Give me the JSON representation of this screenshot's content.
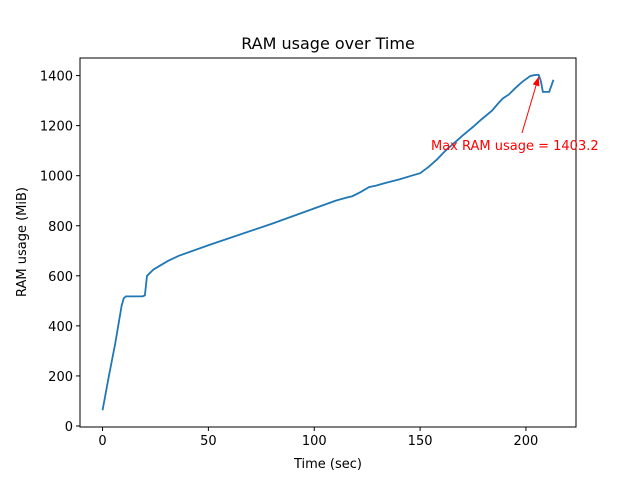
{
  "chart_data": {
    "type": "line",
    "title": "RAM usage over Time",
    "x_label": "Time (sec)",
    "y_label": "RAM usage (MiB)",
    "x": [
      0,
      3,
      6,
      9,
      10,
      11,
      19,
      20,
      21,
      24,
      27,
      31,
      36,
      50,
      80,
      110,
      115,
      118,
      122,
      126,
      129,
      134,
      140,
      146,
      150,
      154,
      158,
      162,
      166,
      170,
      175,
      179,
      184,
      187,
      189,
      192,
      195,
      198,
      202,
      204,
      206,
      207,
      208,
      211,
      213
    ],
    "values": [
      63,
      200,
      330,
      480,
      510,
      518,
      518,
      522,
      600,
      625,
      640,
      660,
      680,
      722,
      808,
      900,
      912,
      918,
      935,
      955,
      960,
      972,
      985,
      1000,
      1010,
      1035,
      1065,
      1100,
      1130,
      1160,
      1195,
      1225,
      1260,
      1290,
      1308,
      1325,
      1350,
      1373,
      1398,
      1402,
      1403.2,
      1380,
      1335,
      1335,
      1383
    ],
    "color": "#1f77b4",
    "annotation": "Max RAM usage = 1403.2",
    "annotation_color": "#ff0000",
    "xlim": [
      -10.65,
      223.65
    ],
    "xticks": [
      0,
      50,
      100,
      150,
      200
    ],
    "ylim": [
      -4,
      1470.2
    ],
    "yticks": [
      0,
      200,
      400,
      600,
      800,
      1000,
      1200,
      1400
    ],
    "grid": false
  }
}
